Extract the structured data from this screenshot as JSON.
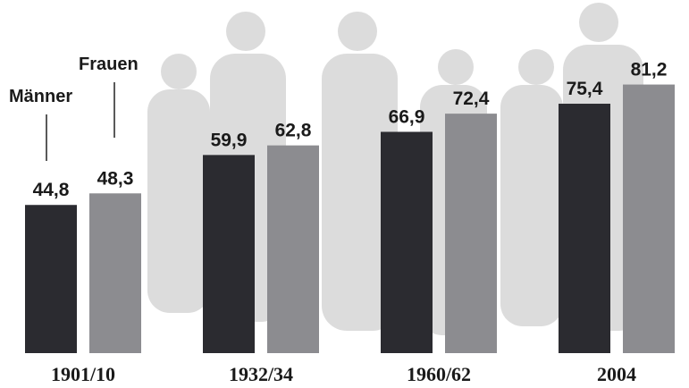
{
  "chart_data": {
    "type": "bar",
    "categories": [
      "1901/10",
      "1932/34",
      "1960/62",
      "2004"
    ],
    "series": [
      {
        "name": "Männer",
        "color": "#2b2b30",
        "values": [
          44.8,
          59.9,
          66.9,
          75.4
        ],
        "value_labels": [
          "44,8",
          "59,9",
          "66,9",
          "75,4"
        ]
      },
      {
        "name": "Frauen",
        "color": "#8c8c90",
        "values": [
          48.3,
          62.8,
          72.4,
          81.2
        ],
        "value_labels": [
          "48,3",
          "62,8",
          "72,4",
          "81,2"
        ]
      }
    ]
  }
}
